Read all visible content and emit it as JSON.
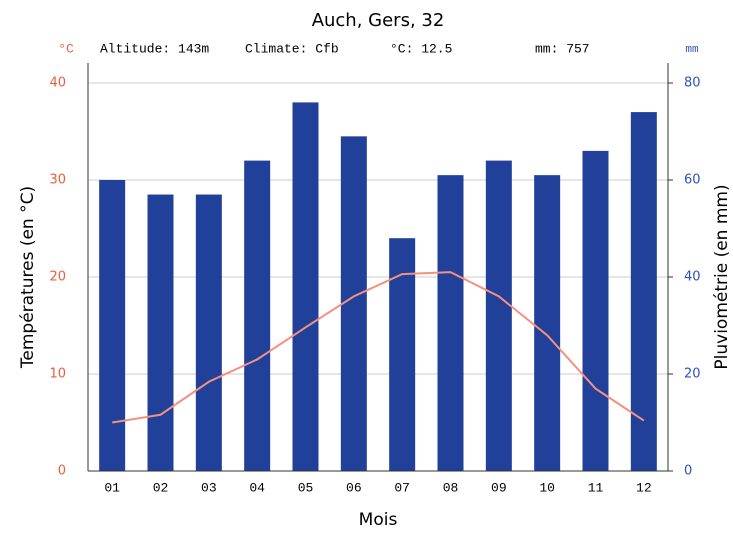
{
  "chart_data": {
    "type": "bar-line",
    "title": "Auch, Gers, 32",
    "annotations": [
      "Altitude: 143m",
      "Climate: Cfb",
      "°C: 12.5",
      "mm: 757"
    ],
    "y_unit": "°C",
    "y2_unit": "mm",
    "y_label": "Températures (en °C)",
    "y2_label": "Pluviométrie (en mm)",
    "x_label": "Mois",
    "categories": [
      "01",
      "02",
      "03",
      "04",
      "05",
      "06",
      "07",
      "08",
      "09",
      "10",
      "11",
      "12"
    ],
    "series": [
      {
        "name": "mm",
        "type": "bar",
        "axis": "y2",
        "color": "#21409a",
        "values": [
          60,
          57,
          57,
          64,
          76,
          69,
          48,
          61,
          64,
          61,
          66,
          74
        ]
      },
      {
        "name": "°C",
        "type": "line",
        "axis": "y",
        "color": "#f4907e",
        "values": [
          5.0,
          5.8,
          9.2,
          11.5,
          14.8,
          18.0,
          20.3,
          20.5,
          18.0,
          14.0,
          8.5,
          5.2
        ]
      }
    ],
    "ylim": [
      0,
      40
    ],
    "yticks": [
      0,
      10,
      20,
      30,
      40
    ],
    "y2lim": [
      0,
      80
    ],
    "y2ticks": [
      0,
      20,
      40,
      60,
      80
    ],
    "grid": true,
    "y_color": "#e8603c",
    "y2_color": "#3050c0"
  }
}
